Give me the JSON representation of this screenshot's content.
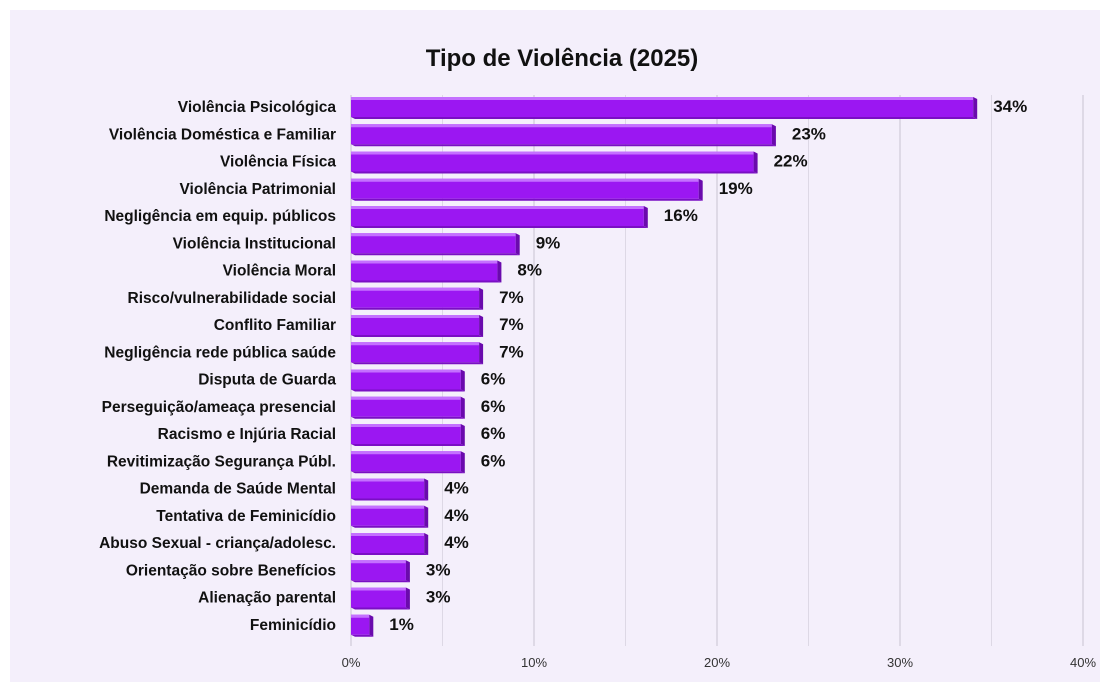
{
  "chart_data": {
    "type": "bar",
    "orientation": "horizontal",
    "title": "Tipo de Violência (2025)",
    "xlabel": "",
    "ylabel": "",
    "xlim": [
      0,
      40
    ],
    "xticks": [
      0,
      10,
      20,
      30,
      40
    ],
    "xtick_labels": [
      "0%",
      "10%",
      "20%",
      "30%",
      "40%"
    ],
    "grid": true,
    "categories": [
      "Violência Psicológica",
      "Violência Doméstica e Familiar",
      "Violência Física",
      "Violência Patrimonial",
      "Negligência em equip. públicos",
      "Violência Institucional",
      "Violência Moral",
      "Risco/vulnerabilidade social",
      "Conflito Familiar",
      "Negligência rede pública saúde",
      "Disputa de Guarda",
      "Perseguição/ameaça presencial",
      "Racismo e Injúria Racial",
      "Revitimização Segurança Públ.",
      "Demanda de Saúde Mental",
      "Tentativa de Feminicídio",
      "Abuso Sexual - criança/adolesc.",
      "Orientação sobre Benefícios",
      "Alienação parental",
      "Feminicídio"
    ],
    "values": [
      34,
      23,
      22,
      19,
      16,
      9,
      8,
      7,
      7,
      7,
      6,
      6,
      6,
      6,
      4,
      4,
      4,
      3,
      3,
      1
    ],
    "value_labels": [
      "34%",
      "23%",
      "22%",
      "19%",
      "16%",
      "9%",
      "8%",
      "7%",
      "7%",
      "7%",
      "6%",
      "6%",
      "6%",
      "6%",
      "4%",
      "4%",
      "4%",
      "3%",
      "3%",
      "1%"
    ],
    "colors": {
      "bar": "#9b17f2",
      "bar_top": "#c470ff",
      "bar_side": "#6a0aad",
      "background": "#f4effb",
      "grid": "#c8c3d1"
    }
  }
}
